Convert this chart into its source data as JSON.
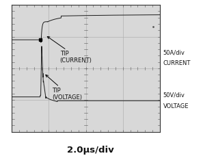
{
  "title": "2.0μs/div",
  "background_color": "#d8d8d8",
  "outer_bg": "#ffffff",
  "grid_color": "#b0b0b0",
  "signal_color": "#1a1a1a",
  "text_color": "#111111",
  "right_label1_line1": "50A/div",
  "right_label1_line2": "CURRENT",
  "right_label2_line1": "50V/div",
  "right_label2_line2": "VOLTAGE",
  "annotation1_line1": "TIP",
  "annotation1_line2": "(CURRENT)",
  "annotation2_line1": "TIP",
  "annotation2_line2": "(VOLTAGE)",
  "label_fontsize": 6.0,
  "title_fontsize": 9.5
}
